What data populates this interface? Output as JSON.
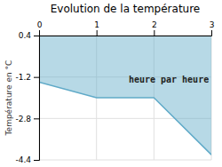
{
  "chart_data": {
    "type": "area",
    "title": "Evolution de la température",
    "ylabel": "Température en °C",
    "annotation": "heure par heure",
    "x": [
      0,
      1,
      2,
      3
    ],
    "values": [
      -1.4,
      -2.0,
      -2.0,
      -4.2
    ],
    "color": "#60aac8",
    "xlim": [
      0,
      3
    ],
    "ylim": [
      -4.4,
      0.4
    ],
    "xticks": [
      0,
      1,
      2,
      3
    ],
    "yticks": [
      0.4,
      -1.2,
      -2.8,
      -4.4
    ],
    "grid": true
  }
}
